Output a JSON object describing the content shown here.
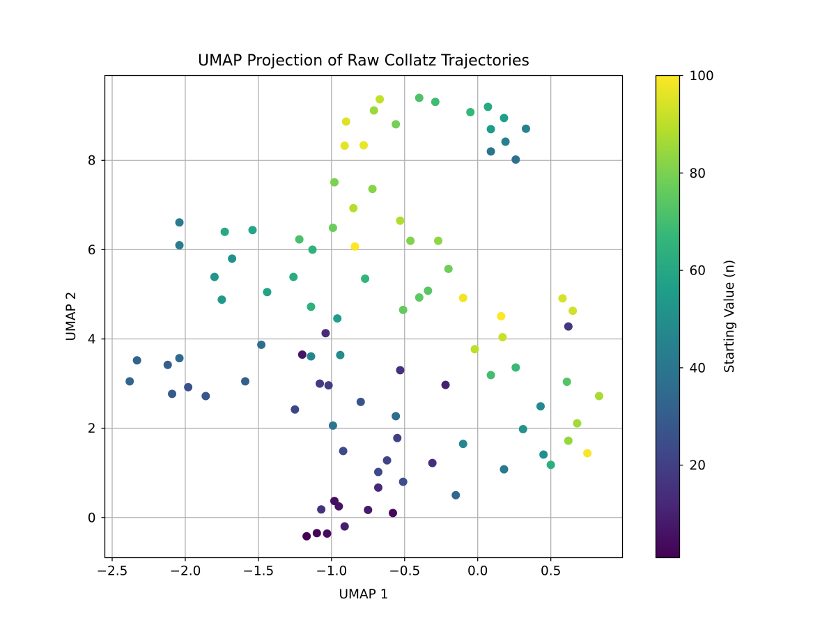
{
  "chart_data": {
    "type": "scatter",
    "title": "UMAP Projection of Raw Collatz Trajectories",
    "xlabel": "UMAP 1",
    "ylabel": "UMAP 2",
    "xlim": [
      -2.55,
      0.99
    ],
    "ylim": [
      -0.9,
      9.9
    ],
    "x_ticks": [
      -2.5,
      -2.0,
      -1.5,
      -1.0,
      -0.5,
      0.0,
      0.5
    ],
    "x_tick_labels": [
      "−2.5",
      "−2.0",
      "−1.5",
      "−1.0",
      "−0.5",
      "0.0",
      "0.5"
    ],
    "y_ticks": [
      0,
      2,
      4,
      6,
      8
    ],
    "y_tick_labels": [
      "0",
      "2",
      "4",
      "6",
      "8"
    ],
    "grid": true,
    "colormap": "viridis",
    "colormap_stops": [
      "#440154",
      "#482878",
      "#3e4989",
      "#31688e",
      "#26828e",
      "#1f9e89",
      "#35b779",
      "#6ece58",
      "#b5de2b",
      "#fde725"
    ],
    "colorbar": {
      "label": "Starting Value (n)",
      "min": 1,
      "max": 100,
      "ticks": [
        20,
        40,
        60,
        80,
        100
      ],
      "tick_labels": [
        "20",
        "40",
        "60",
        "80",
        "100"
      ]
    },
    "points": [
      {
        "x": -1.17,
        "y": -0.42,
        "n": 1
      },
      {
        "x": -1.1,
        "y": -0.35,
        "n": 2
      },
      {
        "x": -1.03,
        "y": -0.36,
        "n": 4
      },
      {
        "x": -0.98,
        "y": 0.37,
        "n": 5
      },
      {
        "x": -0.95,
        "y": 0.25,
        "n": 6
      },
      {
        "x": -0.75,
        "y": 0.17,
        "n": 8
      },
      {
        "x": -0.58,
        "y": 0.1,
        "n": 3
      },
      {
        "x": -1.2,
        "y": 3.65,
        "n": 7
      },
      {
        "x": -0.91,
        "y": -0.2,
        "n": 9
      },
      {
        "x": -0.22,
        "y": 2.97,
        "n": 10
      },
      {
        "x": -0.68,
        "y": 0.67,
        "n": 12
      },
      {
        "x": -1.04,
        "y": 4.13,
        "n": 13
      },
      {
        "x": -0.31,
        "y": 1.22,
        "n": 14
      },
      {
        "x": -0.53,
        "y": 3.3,
        "n": 15
      },
      {
        "x": -1.07,
        "y": 0.18,
        "n": 16
      },
      {
        "x": 0.62,
        "y": 4.28,
        "n": 17
      },
      {
        "x": -1.08,
        "y": 3.0,
        "n": 18
      },
      {
        "x": -1.02,
        "y": 2.96,
        "n": 19
      },
      {
        "x": -0.55,
        "y": 1.78,
        "n": 20
      },
      {
        "x": -0.62,
        "y": 1.28,
        "n": 21
      },
      {
        "x": -1.25,
        "y": 2.42,
        "n": 22
      },
      {
        "x": -0.68,
        "y": 1.02,
        "n": 23
      },
      {
        "x": -0.92,
        "y": 1.49,
        "n": 24
      },
      {
        "x": -0.51,
        "y": 0.8,
        "n": 25
      },
      {
        "x": -1.98,
        "y": 2.92,
        "n": 26
      },
      {
        "x": -0.8,
        "y": 2.59,
        "n": 27
      },
      {
        "x": -1.86,
        "y": 2.72,
        "n": 28
      },
      {
        "x": -2.09,
        "y": 2.77,
        "n": 29
      },
      {
        "x": -2.12,
        "y": 3.42,
        "n": 30
      },
      {
        "x": -1.59,
        "y": 3.05,
        "n": 31
      },
      {
        "x": -2.33,
        "y": 3.52,
        "n": 32
      },
      {
        "x": -2.38,
        "y": 3.05,
        "n": 33
      },
      {
        "x": -0.15,
        "y": 0.5,
        "n": 34
      },
      {
        "x": -2.04,
        "y": 3.57,
        "n": 35
      },
      {
        "x": -0.56,
        "y": 2.27,
        "n": 36
      },
      {
        "x": -1.48,
        "y": 3.87,
        "n": 37
      },
      {
        "x": 0.26,
        "y": 8.02,
        "n": 38
      },
      {
        "x": 0.09,
        "y": 8.2,
        "n": 39
      },
      {
        "x": -0.99,
        "y": 2.06,
        "n": 40
      },
      {
        "x": 0.18,
        "y": 1.08,
        "n": 41
      },
      {
        "x": -2.04,
        "y": 6.61,
        "n": 42
      },
      {
        "x": -2.04,
        "y": 6.1,
        "n": 43
      },
      {
        "x": 0.19,
        "y": 8.42,
        "n": 44
      },
      {
        "x": 0.33,
        "y": 8.71,
        "n": 45
      },
      {
        "x": -1.14,
        "y": 3.61,
        "n": 46
      },
      {
        "x": -0.1,
        "y": 1.65,
        "n": 47
      },
      {
        "x": 0.43,
        "y": 2.49,
        "n": 48
      },
      {
        "x": -0.94,
        "y": 3.64,
        "n": 49
      },
      {
        "x": 0.45,
        "y": 1.41,
        "n": 50
      },
      {
        "x": -1.68,
        "y": 5.8,
        "n": 51
      },
      {
        "x": 0.31,
        "y": 1.98,
        "n": 52
      },
      {
        "x": -1.8,
        "y": 5.39,
        "n": 53
      },
      {
        "x": -1.75,
        "y": 4.88,
        "n": 54
      },
      {
        "x": 0.09,
        "y": 8.7,
        "n": 55
      },
      {
        "x": -0.96,
        "y": 4.46,
        "n": 56
      },
      {
        "x": 0.18,
        "y": 8.95,
        "n": 57
      },
      {
        "x": -1.44,
        "y": 5.05,
        "n": 58
      },
      {
        "x": -1.54,
        "y": 6.44,
        "n": 59
      },
      {
        "x": -1.73,
        "y": 6.4,
        "n": 60
      },
      {
        "x": 0.07,
        "y": 9.2,
        "n": 61
      },
      {
        "x": -1.26,
        "y": 5.39,
        "n": 62
      },
      {
        "x": 0.5,
        "y": 1.18,
        "n": 63
      },
      {
        "x": -1.14,
        "y": 4.72,
        "n": 64
      },
      {
        "x": -1.13,
        "y": 6.0,
        "n": 65
      },
      {
        "x": -0.77,
        "y": 5.35,
        "n": 66
      },
      {
        "x": -0.05,
        "y": 9.08,
        "n": 67
      },
      {
        "x": 0.26,
        "y": 3.36,
        "n": 68
      },
      {
        "x": -0.29,
        "y": 9.31,
        "n": 69
      },
      {
        "x": 0.09,
        "y": 3.19,
        "n": 70
      },
      {
        "x": -1.22,
        "y": 6.23,
        "n": 71
      },
      {
        "x": -0.4,
        "y": 9.4,
        "n": 72
      },
      {
        "x": 0.61,
        "y": 3.04,
        "n": 73
      },
      {
        "x": -0.34,
        "y": 5.08,
        "n": 74
      },
      {
        "x": -0.4,
        "y": 4.93,
        "n": 75
      },
      {
        "x": -0.51,
        "y": 4.65,
        "n": 76
      },
      {
        "x": -0.99,
        "y": 6.49,
        "n": 77
      },
      {
        "x": -0.2,
        "y": 5.57,
        "n": 78
      },
      {
        "x": -0.56,
        "y": 8.81,
        "n": 79
      },
      {
        "x": -0.98,
        "y": 7.51,
        "n": 80
      },
      {
        "x": -0.46,
        "y": 6.2,
        "n": 81
      },
      {
        "x": -0.72,
        "y": 7.36,
        "n": 82
      },
      {
        "x": -0.27,
        "y": 6.2,
        "n": 83
      },
      {
        "x": 0.62,
        "y": 1.72,
        "n": 84
      },
      {
        "x": -0.71,
        "y": 9.12,
        "n": 85
      },
      {
        "x": 0.68,
        "y": 2.11,
        "n": 86
      },
      {
        "x": 0.83,
        "y": 2.72,
        "n": 87
      },
      {
        "x": -0.53,
        "y": 6.65,
        "n": 88
      },
      {
        "x": -0.85,
        "y": 6.93,
        "n": 89
      },
      {
        "x": -0.02,
        "y": 3.77,
        "n": 90
      },
      {
        "x": -0.67,
        "y": 9.37,
        "n": 91
      },
      {
        "x": 0.17,
        "y": 4.04,
        "n": 92
      },
      {
        "x": 0.65,
        "y": 4.63,
        "n": 93
      },
      {
        "x": 0.58,
        "y": 4.91,
        "n": 94
      },
      {
        "x": -0.9,
        "y": 8.87,
        "n": 95
      },
      {
        "x": -0.91,
        "y": 8.33,
        "n": 96
      },
      {
        "x": -0.78,
        "y": 8.34,
        "n": 97
      },
      {
        "x": -0.1,
        "y": 4.92,
        "n": 98
      },
      {
        "x": 0.75,
        "y": 1.44,
        "n": 99
      },
      {
        "x": -0.84,
        "y": 6.07,
        "n": 100
      },
      {
        "x": 0.16,
        "y": 4.51,
        "n": 100
      }
    ]
  }
}
